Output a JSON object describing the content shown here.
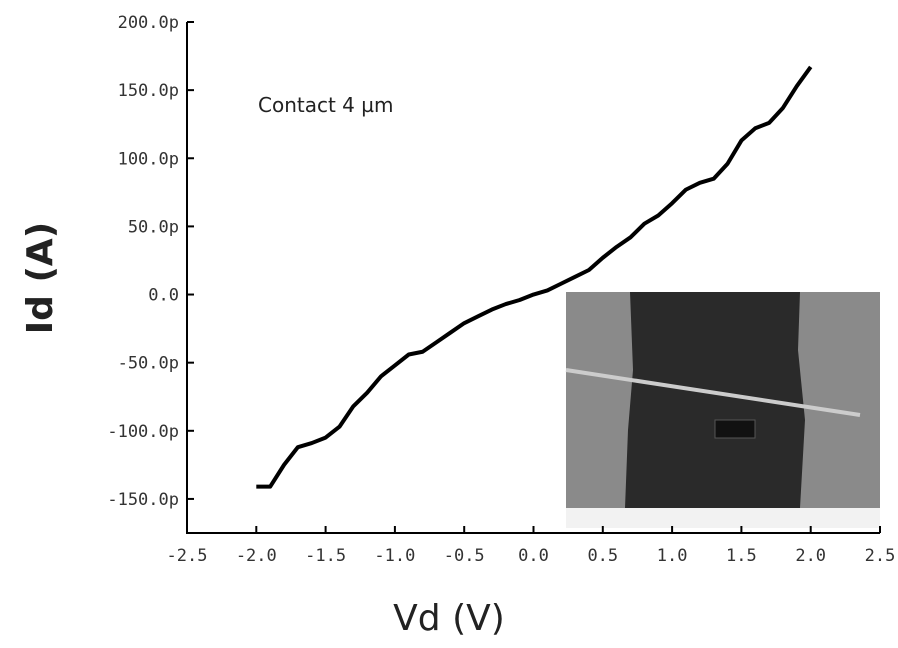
{
  "chart_data": {
    "type": "line",
    "x_label": "Vd (V)",
    "y_label": "Id (A)",
    "annotation": "Contact 4 µm",
    "x": [
      -2.0,
      -1.9,
      -1.8,
      -1.7,
      -1.6,
      -1.5,
      -1.4,
      -1.3,
      -1.2,
      -1.1,
      -1.0,
      -0.9,
      -0.8,
      -0.7,
      -0.6,
      -0.5,
      -0.4,
      -0.3,
      -0.2,
      -0.1,
      0.0,
      0.1,
      0.2,
      0.3,
      0.4,
      0.5,
      0.6,
      0.7,
      0.8,
      0.9,
      1.0,
      1.1,
      1.2,
      1.3,
      1.4,
      1.5,
      1.6,
      1.7,
      1.8,
      1.9,
      2.0
    ],
    "series": [
      {
        "color": "#000000",
        "values": [
          -141,
          -141,
          -125,
          -112,
          -109,
          -105,
          -97,
          -82,
          -72,
          -60,
          -52,
          -44,
          -42,
          -35,
          -28,
          -21,
          -16,
          -11,
          -7,
          -4,
          0,
          3,
          8,
          13,
          18,
          27,
          35,
          42,
          52,
          58,
          67,
          77,
          82,
          85,
          96,
          113,
          122,
          126,
          137,
          153,
          167
        ]
      }
    ],
    "xlim": [
      -2.5,
      2.5
    ],
    "xticks": [
      -2.5,
      {
        "value": -2,
        "label": "-2.0"
      },
      -1.5,
      {
        "value": -1,
        "label": "-1.0"
      },
      -0.5,
      {
        "value": 0,
        "label": "0.0"
      },
      0.5,
      {
        "value": 1,
        "label": "1.0"
      },
      1.5,
      {
        "value": 2,
        "label": "2.0"
      },
      2.5
    ],
    "ylim": [
      -175,
      200
    ],
    "yticks": [
      {
        "value": -150,
        "label": "-150.0p"
      },
      {
        "value": -100,
        "label": "-100.0p"
      },
      {
        "value": -50,
        "label": "-50.0p"
      },
      {
        "value": 0,
        "label": "0.0"
      },
      {
        "value": 50,
        "label": "50.0p"
      },
      {
        "value": 100,
        "label": "100.0p"
      },
      {
        "value": 150,
        "label": "150.0p"
      },
      {
        "value": 200,
        "label": "200.0p"
      }
    ]
  }
}
